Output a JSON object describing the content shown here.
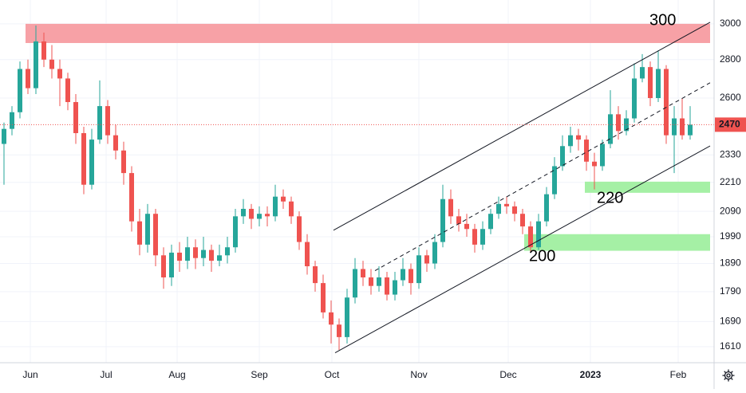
{
  "chart_data": {
    "type": "candlestick",
    "log_scale": true,
    "grid": true,
    "up_color": "#26a69a",
    "down_color": "#ef5350",
    "ylim": [
      1561,
      3141
    ],
    "yticks": [
      1610,
      1690,
      1790,
      1890,
      1990,
      2090,
      2210,
      2330,
      2600,
      2800,
      3000
    ],
    "xlim": [
      -0.5,
      89
    ],
    "xticks": [
      {
        "value": 3.3,
        "label": "Jun"
      },
      {
        "value": 12.8,
        "label": "Jul"
      },
      {
        "value": 21.7,
        "label": "Aug"
      },
      {
        "value": 32,
        "label": "Sep"
      },
      {
        "value": 41.1,
        "label": "Oct"
      },
      {
        "value": 52,
        "label": "Nov"
      },
      {
        "value": 63.2,
        "label": "Dec"
      },
      {
        "value": 73.5,
        "label": "2023"
      },
      {
        "value": 84.5,
        "label": "Feb"
      }
    ],
    "last_price": 2470,
    "ohlc": [
      [
        2380,
        2480,
        2200,
        2450
      ],
      [
        2450,
        2560,
        2420,
        2530
      ],
      [
        2530,
        2790,
        2500,
        2750
      ],
      [
        2750,
        2800,
        2620,
        2650
      ],
      [
        2650,
        2990,
        2620,
        2900
      ],
      [
        2900,
        2950,
        2760,
        2800
      ],
      [
        2800,
        2880,
        2700,
        2750
      ],
      [
        2750,
        2800,
        2560,
        2700
      ],
      [
        2700,
        2730,
        2540,
        2580
      ],
      [
        2580,
        2620,
        2380,
        2430
      ],
      [
        2430,
        2460,
        2160,
        2200
      ],
      [
        2200,
        2450,
        2180,
        2400
      ],
      [
        2400,
        2690,
        2380,
        2560
      ],
      [
        2560,
        2590,
        2380,
        2420
      ],
      [
        2420,
        2470,
        2310,
        2350
      ],
      [
        2350,
        2390,
        2200,
        2250
      ],
      [
        2250,
        2280,
        2010,
        2050
      ],
      [
        2050,
        2100,
        1920,
        1960
      ],
      [
        1960,
        2120,
        1930,
        2080
      ],
      [
        2080,
        2100,
        1880,
        1920
      ],
      [
        1920,
        1950,
        1800,
        1840
      ],
      [
        1840,
        1960,
        1810,
        1930
      ],
      [
        1930,
        1970,
        1860,
        1900
      ],
      [
        1900,
        1990,
        1870,
        1950
      ],
      [
        1950,
        1980,
        1870,
        1910
      ],
      [
        1910,
        1990,
        1880,
        1940
      ],
      [
        1940,
        1960,
        1860,
        1900
      ],
      [
        1900,
        1960,
        1880,
        1920
      ],
      [
        1920,
        1990,
        1890,
        1950
      ],
      [
        1950,
        2100,
        1930,
        2070
      ],
      [
        2070,
        2140,
        2040,
        2100
      ],
      [
        2100,
        2120,
        2020,
        2060
      ],
      [
        2060,
        2110,
        2030,
        2080
      ],
      [
        2080,
        2110,
        2030,
        2070
      ],
      [
        2070,
        2200,
        2050,
        2150
      ],
      [
        2150,
        2180,
        2100,
        2130
      ],
      [
        2130,
        2150,
        2040,
        2070
      ],
      [
        2070,
        2090,
        1940,
        1970
      ],
      [
        1970,
        2000,
        1850,
        1880
      ],
      [
        1880,
        1900,
        1790,
        1820
      ],
      [
        1820,
        1850,
        1700,
        1720
      ],
      [
        1720,
        1760,
        1620,
        1680
      ],
      [
        1680,
        1700,
        1600,
        1640
      ],
      [
        1640,
        1800,
        1620,
        1770
      ],
      [
        1770,
        1910,
        1750,
        1870
      ],
      [
        1870,
        1900,
        1810,
        1840
      ],
      [
        1840,
        1870,
        1780,
        1810
      ],
      [
        1810,
        1880,
        1790,
        1840
      ],
      [
        1840,
        1860,
        1760,
        1780
      ],
      [
        1780,
        1860,
        1760,
        1830
      ],
      [
        1830,
        1910,
        1810,
        1870
      ],
      [
        1870,
        1890,
        1780,
        1820
      ],
      [
        1820,
        1950,
        1800,
        1920
      ],
      [
        1920,
        1940,
        1860,
        1890
      ],
      [
        1890,
        2000,
        1870,
        1970
      ],
      [
        1970,
        2200,
        1950,
        2140
      ],
      [
        2140,
        2180,
        2040,
        2070
      ],
      [
        2070,
        2100,
        2010,
        2040
      ],
      [
        2040,
        2080,
        1990,
        2020
      ],
      [
        2020,
        2040,
        1930,
        1960
      ],
      [
        1960,
        2050,
        1940,
        2020
      ],
      [
        2020,
        2100,
        2000,
        2080
      ],
      [
        2080,
        2150,
        2060,
        2120
      ],
      [
        2120,
        2150,
        2080,
        2110
      ],
      [
        2110,
        2130,
        2050,
        2080
      ],
      [
        2080,
        2100,
        2000,
        2030
      ],
      [
        2030,
        2050,
        1930,
        1950
      ],
      [
        1950,
        2080,
        1940,
        2050
      ],
      [
        2050,
        2190,
        2030,
        2160
      ],
      [
        2160,
        2320,
        2140,
        2280
      ],
      [
        2280,
        2420,
        2260,
        2370
      ],
      [
        2370,
        2460,
        2340,
        2420
      ],
      [
        2420,
        2450,
        2350,
        2400
      ],
      [
        2400,
        2420,
        2260,
        2300
      ],
      [
        2300,
        2340,
        2180,
        2280
      ],
      [
        2280,
        2400,
        2260,
        2380
      ],
      [
        2380,
        2640,
        2360,
        2520
      ],
      [
        2520,
        2560,
        2400,
        2440
      ],
      [
        2440,
        2540,
        2420,
        2500
      ],
      [
        2500,
        2780,
        2480,
        2700
      ],
      [
        2700,
        2830,
        2680,
        2760
      ],
      [
        2760,
        2790,
        2560,
        2600
      ],
      [
        2600,
        2850,
        2580,
        2750
      ],
      [
        2750,
        2770,
        2380,
        2420
      ],
      [
        2420,
        2560,
        2250,
        2500
      ],
      [
        2500,
        2600,
        2400,
        2420
      ],
      [
        2420,
        2560,
        2400,
        2470
      ]
    ],
    "zones": [
      {
        "x": [
          2.7,
          88.5
        ],
        "y": [
          2891,
          3000
        ],
        "color": "#f7a1a6"
      },
      {
        "x": [
          72.8,
          88.5
        ],
        "y": [
          2166,
          2213
        ],
        "color": "#a5f0a5"
      },
      {
        "x": [
          65.2,
          88.5
        ],
        "y": [
          1937,
          2000
        ],
        "color": "#a5f0a5"
      }
    ],
    "trend_lines": [
      {
        "points": [
          [
            41.3,
            2015
          ],
          [
            88.5,
            3009
          ]
        ],
        "dashed": false
      },
      {
        "points": [
          [
            46.5,
            1864
          ],
          [
            88.5,
            2678
          ]
        ],
        "dashed": true
      },
      {
        "points": [
          [
            41.5,
            1591
          ],
          [
            88.5,
            2371
          ]
        ],
        "dashed": false
      }
    ],
    "annotations": [
      "300",
      "220",
      "200"
    ]
  }
}
